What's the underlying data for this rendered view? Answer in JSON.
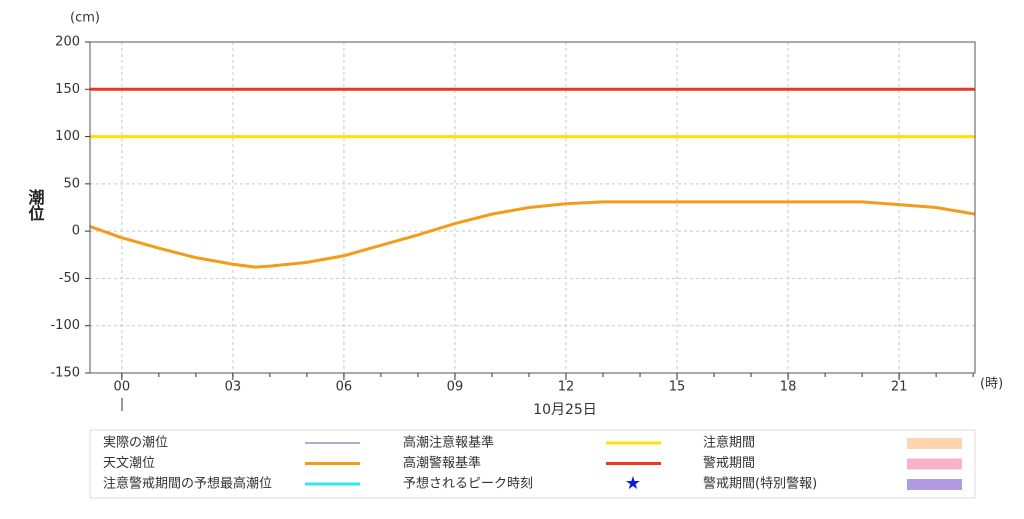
{
  "chart_data": {
    "type": "line",
    "y_unit": "(cm)",
    "ylabel": "潮位",
    "x_unit": "(時)",
    "date_label": "10月25日",
    "xlim": [
      -0.86,
      23.05
    ],
    "xticks": [
      {
        "value": 0,
        "label": "00"
      },
      {
        "value": 3,
        "label": "03"
      },
      {
        "value": 6,
        "label": "06"
      },
      {
        "value": 9,
        "label": "09"
      },
      {
        "value": 12,
        "label": "12"
      },
      {
        "value": 15,
        "label": "15"
      },
      {
        "value": 18,
        "label": "18"
      },
      {
        "value": 21,
        "label": "21"
      }
    ],
    "ylim": [
      -150,
      200
    ],
    "yticks": [
      -150,
      -100,
      -50,
      0,
      50,
      100,
      150,
      200
    ],
    "grid": true,
    "series": [
      {
        "color": "#f39c1a",
        "x": [
          -0.86,
          0,
          1,
          2,
          3,
          3.6,
          4,
          5,
          6,
          7,
          8,
          9,
          10,
          11,
          12,
          13,
          14,
          15,
          16,
          17,
          18,
          19,
          20,
          21,
          22,
          23.05
        ],
        "values": [
          5,
          -7,
          -18,
          -28,
          -35,
          -38,
          -37,
          -33,
          -26,
          -15,
          -4,
          8,
          18,
          25,
          29,
          31,
          31,
          31,
          31,
          31,
          31,
          31,
          31,
          28,
          25,
          18
        ]
      }
    ],
    "hlines": [
      {
        "value": 100,
        "color": "#ffe000"
      },
      {
        "value": 150,
        "color": "#e83820"
      }
    ],
    "legend": [
      {
        "name": "実際の潮位",
        "color": "#6a5a9a",
        "symbol": "thin"
      },
      {
        "name": "天文潮位",
        "color": "#f39c1a",
        "symbol": "line"
      },
      {
        "name": "注意警戒期間の予想最高潮位",
        "color": "#33e5f5",
        "symbol": "line"
      },
      {
        "name": "高潮注意報基準",
        "color": "#ffe000",
        "symbol": "line"
      },
      {
        "name": "高潮警報基準",
        "color": "#e83820",
        "symbol": "line"
      },
      {
        "name": "予想されるピーク時刻",
        "color": "#0a1ee0",
        "symbol": "star"
      },
      {
        "name": "注意期間",
        "color": "#fcd7ab",
        "symbol": "rect"
      },
      {
        "name": "警戒期間",
        "color": "#f9b3c9",
        "symbol": "rect"
      },
      {
        "name": "警戒期間(特別警報)",
        "color": "#b09ae0",
        "symbol": "rect"
      }
    ]
  }
}
